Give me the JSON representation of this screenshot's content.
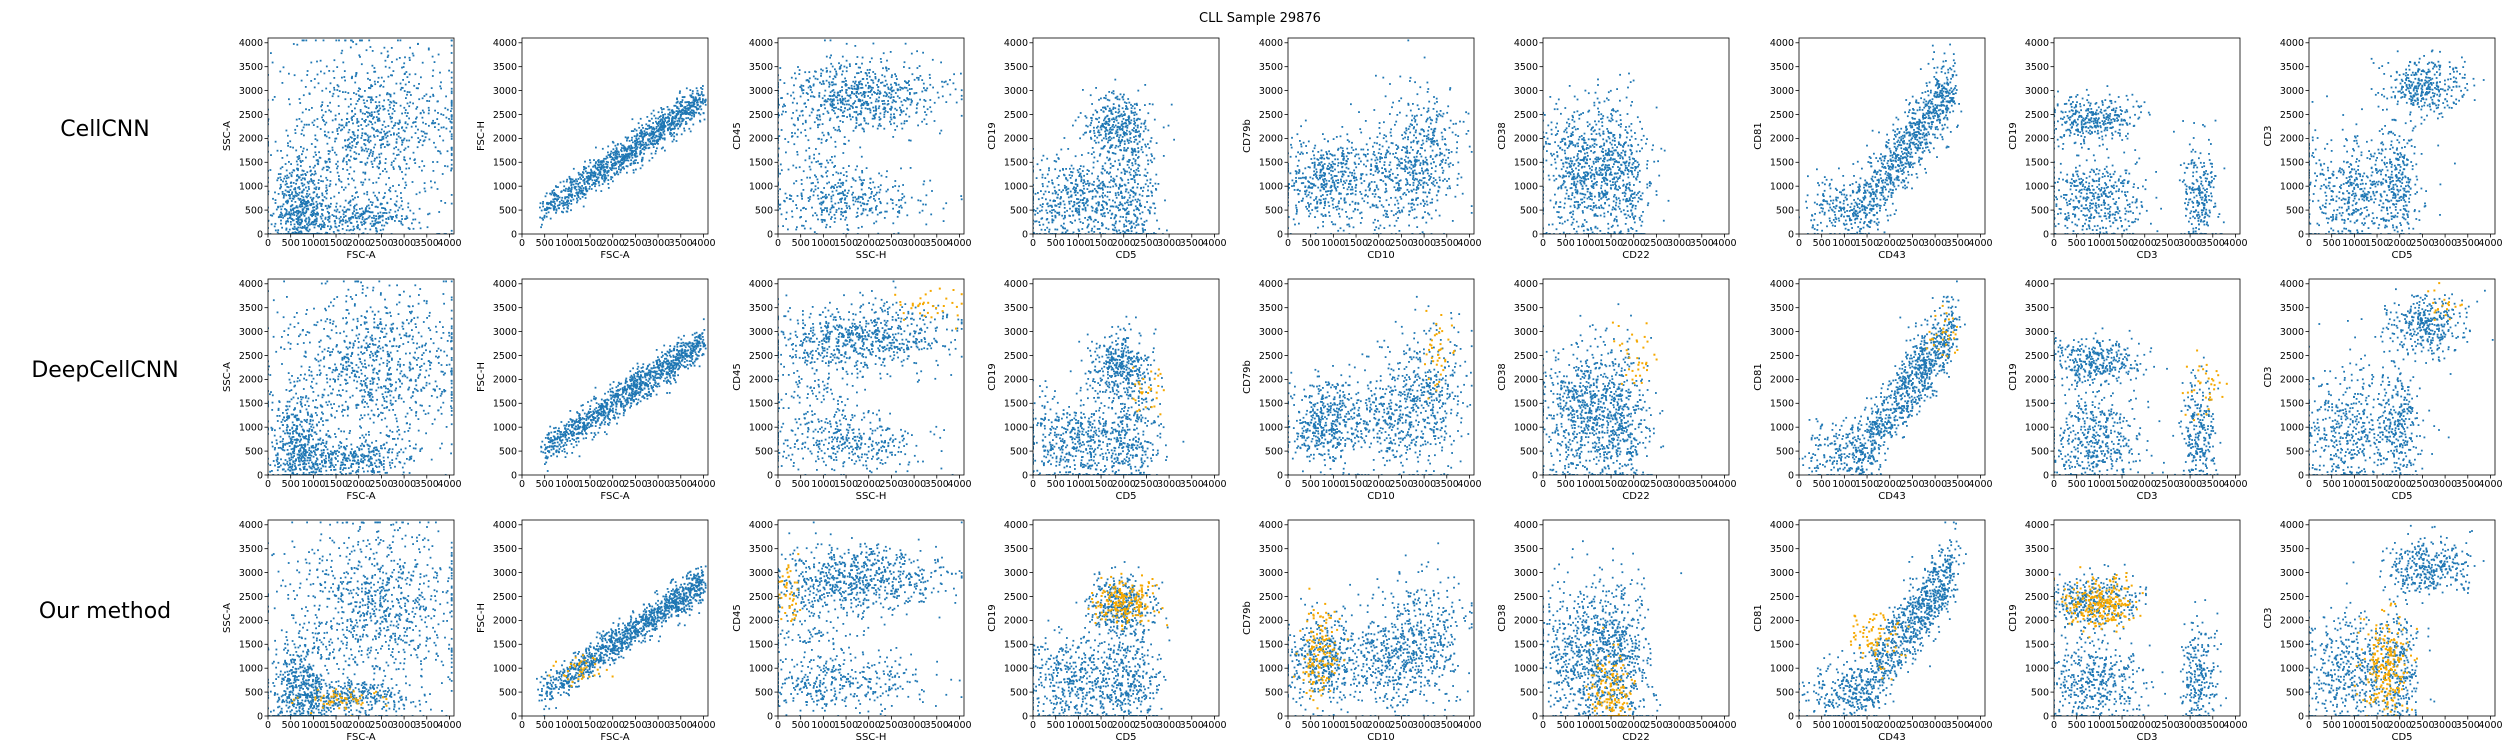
{
  "title": "CLL Sample 29876",
  "rows": [
    "CellCNN",
    "DeepCellCNN",
    "Our method"
  ],
  "colors": {
    "background_cells": "#1f77b4",
    "selected_cells": "#f5a800",
    "axes": "#000000"
  },
  "chart_data": {
    "type": "scatter",
    "grid": false,
    "xlim": [
      0,
      4100
    ],
    "ylim": [
      0,
      4100
    ],
    "x_ticks": [
      0,
      500,
      1000,
      1500,
      2000,
      2500,
      3000,
      3500,
      4000
    ],
    "y_ticks": [
      0,
      500,
      1000,
      1500,
      2000,
      2500,
      3000,
      3500,
      4000
    ],
    "panels": [
      {
        "xlabel": "FSC-A",
        "ylabel": "SSC-A"
      },
      {
        "xlabel": "FSC-A",
        "ylabel": "FSC-H"
      },
      {
        "xlabel": "SSC-H",
        "ylabel": "CD45"
      },
      {
        "xlabel": "CD5",
        "ylabel": "CD19"
      },
      {
        "xlabel": "CD10",
        "ylabel": "CD79b"
      },
      {
        "xlabel": "CD22",
        "ylabel": "CD38"
      },
      {
        "xlabel": "CD43",
        "ylabel": "CD81"
      },
      {
        "xlabel": "CD3",
        "ylabel": "CD19"
      },
      {
        "xlabel": "CD5",
        "ylabel": "CD3"
      }
    ],
    "populations": [
      [
        {
          "x": 2400,
          "y": 2300,
          "sx": 900,
          "sy": 750,
          "n": 700
        },
        {
          "x": 1800,
          "y": 350,
          "sx": 700,
          "sy": 200,
          "n": 350
        },
        {
          "x": 700,
          "y": 600,
          "sx": 300,
          "sy": 500,
          "n": 450
        },
        {
          "x": 2000,
          "y": 2000,
          "sx": 1200,
          "sy": 1200,
          "n": 250
        }
      ],
      [
        {
          "diag": true,
          "x0": 400,
          "x1": 4000,
          "y0": 450,
          "y1": 2800,
          "noise": 180,
          "n": 1200
        }
      ],
      [
        {
          "x": 1900,
          "y": 2900,
          "sx": 900,
          "sy": 350,
          "n": 650
        },
        {
          "x": 1500,
          "y": 700,
          "sx": 900,
          "sy": 300,
          "n": 350
        },
        {
          "x": 800,
          "y": 1900,
          "sx": 700,
          "sy": 700,
          "n": 200
        }
      ],
      [
        {
          "x": 1900,
          "y": 2300,
          "sx": 350,
          "sy": 350,
          "n": 350
        },
        {
          "x": 1000,
          "y": 700,
          "sx": 650,
          "sy": 500,
          "n": 550
        },
        {
          "x": 2200,
          "y": 800,
          "sx": 300,
          "sy": 700,
          "n": 300
        }
      ],
      [
        {
          "x": 800,
          "y": 1100,
          "sx": 450,
          "sy": 450,
          "n": 450
        },
        {
          "x": 2400,
          "y": 1200,
          "sx": 600,
          "sy": 600,
          "n": 450
        },
        {
          "x": 3100,
          "y": 1800,
          "sx": 450,
          "sy": 700,
          "n": 250
        }
      ],
      [
        {
          "x": 1000,
          "y": 1300,
          "sx": 550,
          "sy": 750,
          "n": 800
        },
        {
          "x": 1800,
          "y": 1100,
          "sx": 300,
          "sy": 800,
          "n": 250
        }
      ],
      [
        {
          "diag": true,
          "x0": 1200,
          "x1": 3400,
          "y0": 300,
          "y1": 3100,
          "noise": 380,
          "n": 900
        },
        {
          "x": 900,
          "y": 500,
          "sx": 400,
          "sy": 350,
          "n": 200
        }
      ],
      [
        {
          "x": 900,
          "y": 2400,
          "sx": 500,
          "sy": 250,
          "n": 350
        },
        {
          "x": 900,
          "y": 700,
          "sx": 550,
          "sy": 500,
          "n": 450
        },
        {
          "x": 3200,
          "y": 800,
          "sx": 200,
          "sy": 600,
          "n": 250
        }
      ],
      [
        {
          "x": 2600,
          "y": 3100,
          "sx": 450,
          "sy": 300,
          "n": 350
        },
        {
          "x": 1000,
          "y": 900,
          "sx": 650,
          "sy": 650,
          "n": 550
        },
        {
          "x": 2000,
          "y": 1000,
          "sx": 200,
          "sy": 600,
          "n": 200
        }
      ]
    ],
    "highlights": [
      [
        [],
        [],
        [],
        [],
        [],
        [],
        [],
        [],
        []
      ],
      [
        [],
        [],
        [
          {
            "x": 3400,
            "y": 3600,
            "sx": 350,
            "sy": 200,
            "n": 35
          }
        ],
        [
          {
            "x": 2500,
            "y": 1800,
            "sx": 250,
            "sy": 300,
            "n": 30
          }
        ],
        [
          {
            "x": 3300,
            "y": 2500,
            "sx": 200,
            "sy": 400,
            "n": 40
          }
        ],
        [
          {
            "x": 2000,
            "y": 2400,
            "sx": 250,
            "sy": 350,
            "n": 35
          }
        ],
        [
          {
            "x": 3200,
            "y": 2900,
            "sx": 200,
            "sy": 300,
            "n": 30
          }
        ],
        [
          {
            "x": 3300,
            "y": 1900,
            "sx": 300,
            "sy": 300,
            "n": 35
          }
        ],
        [
          {
            "x": 3000,
            "y": 3500,
            "sx": 200,
            "sy": 200,
            "n": 20
          }
        ]
      ],
      [
        [
          {
            "x": 1500,
            "y": 350,
            "sx": 450,
            "sy": 120,
            "n": 60
          }
        ],
        [
          {
            "x": 1400,
            "y": 1000,
            "sx": 300,
            "sy": 150,
            "n": 40
          }
        ],
        [
          {
            "x": 250,
            "y": 2500,
            "sx": 120,
            "sy": 300,
            "n": 45
          }
        ],
        [
          {
            "x": 2000,
            "y": 2400,
            "sx": 350,
            "sy": 250,
            "n": 200
          }
        ],
        [
          {
            "x": 700,
            "y": 1300,
            "sx": 220,
            "sy": 450,
            "n": 150
          }
        ],
        [
          {
            "x": 1500,
            "y": 400,
            "sx": 250,
            "sy": 400,
            "n": 150
          }
        ],
        [
          {
            "x": 1700,
            "y": 1600,
            "sx": 300,
            "sy": 300,
            "n": 80
          }
        ],
        [
          {
            "x": 1000,
            "y": 2350,
            "sx": 400,
            "sy": 250,
            "n": 250
          }
        ],
        [
          {
            "x": 1700,
            "y": 1000,
            "sx": 250,
            "sy": 500,
            "n": 220
          }
        ]
      ]
    ]
  }
}
